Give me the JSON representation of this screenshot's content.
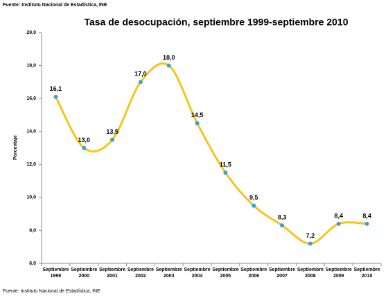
{
  "source_top": "Fuente: Instituto Nacional de Estadística, INE",
  "source_bottom": "Fuente: Instituto Nacional de Estadística, INE",
  "chart_data": {
    "type": "line",
    "title": "Tasa de desocupación, septiembre 1999-septiembre 2010",
    "y_label": "Porcentaje",
    "categories": [
      "Septiembre 1999",
      "Septiembre 2000",
      "Septiembre 2001",
      "Septiembre 2002",
      "Septiembre 2003",
      "Septiembre 2004",
      "Septiembre 2005",
      "Septiembre 2006",
      "Septiembre 2007",
      "Septiembre 2008",
      "Septiembre 2009",
      "Septiembre 2010"
    ],
    "values": [
      16.1,
      13.0,
      13.5,
      17.0,
      18.0,
      14.5,
      11.5,
      9.5,
      8.3,
      7.2,
      8.4,
      8.4
    ],
    "value_labels": [
      "16,1",
      "13,0",
      "13,5",
      "17,0",
      "18,0",
      "14,5",
      "11,5",
      "9,5",
      "8,3",
      "7,2",
      "8,4",
      "8,4"
    ],
    "color": "#f5c518",
    "marker_color": "#3ba0d8",
    "ylim": [
      6,
      20
    ],
    "yticks": [
      {
        "value": 6,
        "label": "6,0"
      },
      {
        "value": 8,
        "label": "8,0"
      },
      {
        "value": 10,
        "label": "10,0"
      },
      {
        "value": 12,
        "label": "12,0"
      },
      {
        "value": 14,
        "label": "14,0"
      },
      {
        "value": 16,
        "label": "16,0"
      },
      {
        "value": 18,
        "label": "18,0"
      },
      {
        "value": 20,
        "label": "20,0"
      }
    ]
  }
}
